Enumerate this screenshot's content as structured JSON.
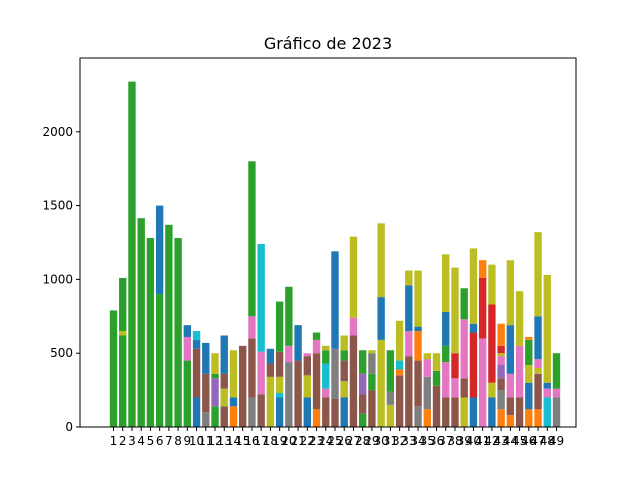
{
  "chart_data": {
    "type": "bar",
    "stacked": true,
    "title": "Gráfico de 2023",
    "xlabel": "",
    "ylabel": "",
    "ylim": [
      0,
      2500
    ],
    "yticks": [
      0,
      500,
      1000,
      1500,
      2000
    ],
    "grid": false,
    "legend": "none",
    "categories": [
      "1",
      "2",
      "3",
      "4",
      "5",
      "6",
      "7",
      "8",
      "9",
      "10",
      "11",
      "12",
      "13",
      "14",
      "15",
      "16",
      "17",
      "18",
      "19",
      "20",
      "21",
      "22",
      "23",
      "24",
      "25",
      "26",
      "27",
      "28",
      "29",
      "30",
      "31",
      "32",
      "33",
      "34",
      "35",
      "36",
      "37",
      "38",
      "39",
      "40",
      "41",
      "42",
      "43",
      "44",
      "45",
      "46",
      "47",
      "48",
      "49"
    ],
    "stacks": [
      [
        [
          790,
          "#2ca02c"
        ]
      ],
      [
        [
          620,
          "#2ca02c"
        ],
        [
          30,
          "#bcbd22"
        ],
        [
          360,
          "#2ca02c"
        ]
      ],
      [
        [
          2340,
          "#2ca02c"
        ]
      ],
      [
        [
          1415,
          "#2ca02c"
        ]
      ],
      [
        [
          1280,
          "#2ca02c"
        ]
      ],
      [
        [
          900,
          "#2ca02c"
        ],
        [
          600,
          "#1f77b4"
        ]
      ],
      [
        [
          1370,
          "#2ca02c"
        ]
      ],
      [
        [
          1280,
          "#2ca02c"
        ]
      ],
      [
        [
          450,
          "#2ca02c"
        ],
        [
          160,
          "#e377c2"
        ],
        [
          80,
          "#1f77b4"
        ]
      ],
      [
        [
          200,
          "#1f77b4"
        ],
        [
          330,
          "#8c564b"
        ],
        [
          60,
          "#1f77b4"
        ],
        [
          60,
          "#17becf"
        ]
      ],
      [
        [
          100,
          "#7f7f7f"
        ],
        [
          260,
          "#8c564b"
        ],
        [
          210,
          "#1f77b4"
        ]
      ],
      [
        [
          140,
          "#2ca02c"
        ],
        [
          190,
          "#9467bd"
        ],
        [
          30,
          "#2ca02c"
        ],
        [
          140,
          "#bcbd22"
        ]
      ],
      [
        [
          140,
          "#8c564b"
        ],
        [
          120,
          "#bcbd22"
        ],
        [
          100,
          "#8c564b"
        ],
        [
          260,
          "#1f77b4"
        ]
      ],
      [
        [
          140,
          "#ff7f0e"
        ],
        [
          60,
          "#1f77b4"
        ],
        [
          320,
          "#bcbd22"
        ]
      ],
      [
        [
          550,
          "#8c564b"
        ]
      ],
      [
        [
          200,
          "#7f7f7f"
        ],
        [
          400,
          "#8c564b"
        ],
        [
          150,
          "#e377c2"
        ],
        [
          1050,
          "#2ca02c"
        ]
      ],
      [
        [
          220,
          "#8c564b"
        ],
        [
          290,
          "#e377c2"
        ],
        [
          730,
          "#17becf"
        ]
      ],
      [
        [
          340,
          "#bcbd22"
        ],
        [
          90,
          "#8c564b"
        ],
        [
          100,
          "#1f77b4"
        ]
      ],
      [
        [
          200,
          "#1f77b4"
        ],
        [
          30,
          "#17becf"
        ],
        [
          110,
          "#bcbd22"
        ],
        [
          170,
          "#8c564b"
        ],
        [
          340,
          "#2ca02c"
        ]
      ],
      [
        [
          440,
          "#7f7f7f"
        ],
        [
          110,
          "#e377c2"
        ],
        [
          400,
          "#2ca02c"
        ]
      ],
      [
        [
          450,
          "#8c564b"
        ],
        [
          240,
          "#1f77b4"
        ]
      ],
      [
        [
          200,
          "#1f77b4"
        ],
        [
          150,
          "#bcbd22"
        ],
        [
          130,
          "#8c564b"
        ],
        [
          20,
          "#e377c2"
        ]
      ],
      [
        [
          120,
          "#ff7f0e"
        ],
        [
          380,
          "#8c564b"
        ],
        [
          90,
          "#e377c2"
        ],
        [
          50,
          "#2ca02c"
        ]
      ],
      [
        [
          200,
          "#8c564b"
        ],
        [
          60,
          "#e377c2"
        ],
        [
          170,
          "#17becf"
        ],
        [
          90,
          "#2ca02c"
        ],
        [
          30,
          "#bcbd22"
        ]
      ],
      [
        [
          190,
          "#8c564b"
        ],
        [
          340,
          "#7f7f7f"
        ],
        [
          660,
          "#1f77b4"
        ]
      ],
      [
        [
          200,
          "#1f77b4"
        ],
        [
          110,
          "#bcbd22"
        ],
        [
          140,
          "#8c564b"
        ],
        [
          70,
          "#2ca02c"
        ],
        [
          100,
          "#bcbd22"
        ]
      ],
      [
        [
          620,
          "#8c564b"
        ],
        [
          120,
          "#e377c2"
        ],
        [
          550,
          "#bcbd22"
        ]
      ],
      [
        [
          90,
          "#2ca02c"
        ],
        [
          130,
          "#8c564b"
        ],
        [
          140,
          "#9467bd"
        ],
        [
          160,
          "#2ca02c"
        ]
      ],
      [
        [
          250,
          "#8c564b"
        ],
        [
          110,
          "#2ca02c"
        ],
        [
          140,
          "#7f7f7f"
        ],
        [
          20,
          "#bcbd22"
        ]
      ],
      [
        [
          590,
          "#bcbd22"
        ],
        [
          290,
          "#1f77b4"
        ],
        [
          500,
          "#bcbd22"
        ]
      ],
      [
        [
          150,
          "#bcbd22"
        ],
        [
          90,
          "#7f7f7f"
        ],
        [
          280,
          "#2ca02c"
        ]
      ],
      [
        [
          350,
          "#8c564b"
        ],
        [
          40,
          "#ff7f0e"
        ],
        [
          60,
          "#17becf"
        ],
        [
          270,
          "#bcbd22"
        ]
      ],
      [
        [
          480,
          "#8c564b"
        ],
        [
          170,
          "#e377c2"
        ],
        [
          310,
          "#1f77b4"
        ],
        [
          100,
          "#bcbd22"
        ]
      ],
      [
        [
          140,
          "#7f7f7f"
        ],
        [
          310,
          "#8c564b"
        ],
        [
          200,
          "#ff7f0e"
        ],
        [
          30,
          "#1f77b4"
        ],
        [
          380,
          "#bcbd22"
        ]
      ],
      [
        [
          120,
          "#ff7f0e"
        ],
        [
          220,
          "#7f7f7f"
        ],
        [
          120,
          "#e377c2"
        ],
        [
          40,
          "#bcbd22"
        ]
      ],
      [
        [
          280,
          "#8c564b"
        ],
        [
          100,
          "#2ca02c"
        ],
        [
          120,
          "#bcbd22"
        ]
      ],
      [
        [
          200,
          "#8c564b"
        ],
        [
          240,
          "#e377c2"
        ],
        [
          110,
          "#2ca02c"
        ],
        [
          230,
          "#1f77b4"
        ],
        [
          390,
          "#bcbd22"
        ]
      ],
      [
        [
          200,
          "#8c564b"
        ],
        [
          130,
          "#e377c2"
        ],
        [
          170,
          "#d62728"
        ],
        [
          580,
          "#bcbd22"
        ]
      ],
      [
        [
          200,
          "#bcbd22"
        ],
        [
          130,
          "#8c564b"
        ],
        [
          400,
          "#e377c2"
        ],
        [
          210,
          "#2ca02c"
        ]
      ],
      [
        [
          200,
          "#1f77b4"
        ],
        [
          440,
          "#d62728"
        ],
        [
          60,
          "#1f77b4"
        ],
        [
          510,
          "#bcbd22"
        ]
      ],
      [
        [
          600,
          "#e377c2"
        ],
        [
          410,
          "#d62728"
        ],
        [
          120,
          "#ff7f0e"
        ]
      ],
      [
        [
          200,
          "#1f77b4"
        ],
        [
          100,
          "#bcbd22"
        ],
        [
          530,
          "#d62728"
        ],
        [
          270,
          "#bcbd22"
        ]
      ],
      [
        [
          120,
          "#ff7f0e"
        ],
        [
          130,
          "#7f7f7f"
        ],
        [
          80,
          "#8c564b"
        ],
        [
          90,
          "#9467bd"
        ],
        [
          60,
          "#e377c2"
        ],
        [
          20,
          "#bcbd22"
        ],
        [
          50,
          "#d62728"
        ],
        [
          150,
          "#ff7f0e"
        ]
      ],
      [
        [
          80,
          "#ff7f0e"
        ],
        [
          120,
          "#8c564b"
        ],
        [
          160,
          "#e377c2"
        ],
        [
          330,
          "#1f77b4"
        ],
        [
          440,
          "#bcbd22"
        ]
      ],
      [
        [
          200,
          "#8c564b"
        ],
        [
          350,
          "#e377c2"
        ],
        [
          370,
          "#bcbd22"
        ]
      ],
      [
        [
          120,
          "#ff7f0e"
        ],
        [
          180,
          "#1f77b4"
        ],
        [
          120,
          "#bcbd22"
        ],
        [
          170,
          "#2ca02c"
        ],
        [
          20,
          "#ff7f0e"
        ]
      ],
      [
        [
          120,
          "#ff7f0e"
        ],
        [
          240,
          "#8c564b"
        ],
        [
          40,
          "#bcbd22"
        ],
        [
          60,
          "#e377c2"
        ],
        [
          290,
          "#1f77b4"
        ],
        [
          570,
          "#bcbd22"
        ]
      ],
      [
        [
          200,
          "#17becf"
        ],
        [
          60,
          "#e377c2"
        ],
        [
          40,
          "#1f77b4"
        ],
        [
          730,
          "#bcbd22"
        ]
      ],
      [
        [
          200,
          "#7f7f7f"
        ],
        [
          60,
          "#e377c2"
        ],
        [
          240,
          "#2ca02c"
        ]
      ]
    ]
  }
}
